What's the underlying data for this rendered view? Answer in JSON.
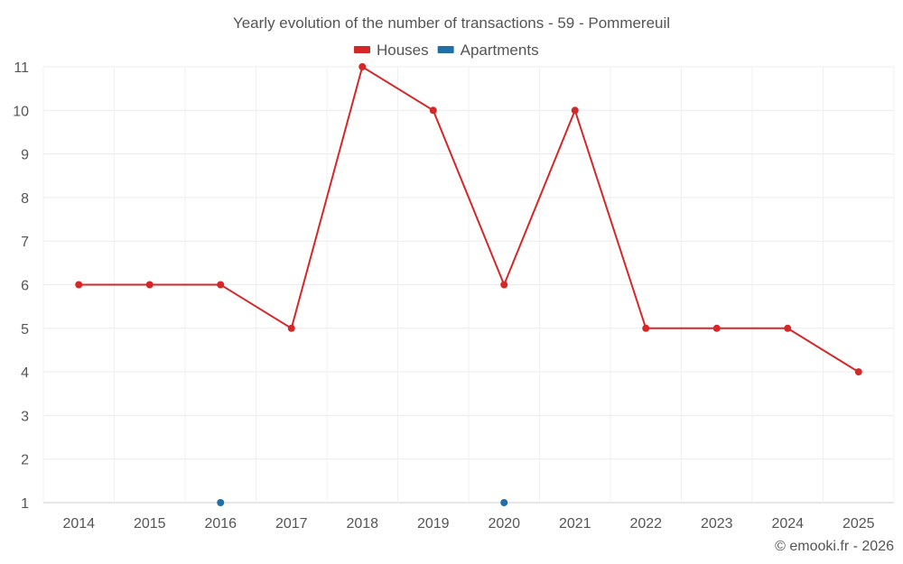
{
  "chart_data": {
    "type": "line",
    "title": "Yearly evolution of the number of transactions - 59 - Pommereuil",
    "categories": [
      "2014",
      "2015",
      "2016",
      "2017",
      "2018",
      "2019",
      "2020",
      "2021",
      "2022",
      "2023",
      "2024",
      "2025"
    ],
    "series": [
      {
        "name": "Houses",
        "color": "#d62728",
        "values": [
          6,
          6,
          6,
          5,
          11,
          10,
          6,
          10,
          5,
          5,
          5,
          4
        ]
      },
      {
        "name": "Apartments",
        "color": "#1f6fa8",
        "values": [
          null,
          null,
          1,
          null,
          null,
          null,
          1,
          null,
          null,
          null,
          null,
          null
        ]
      }
    ],
    "ylim": [
      1,
      11
    ],
    "yticks": [
      1,
      2,
      3,
      4,
      5,
      6,
      7,
      8,
      9,
      10,
      11
    ],
    "grid": true,
    "legend_position": "top-center",
    "xlabel": "",
    "ylabel": ""
  },
  "credit": "© emooki.fr - 2026"
}
